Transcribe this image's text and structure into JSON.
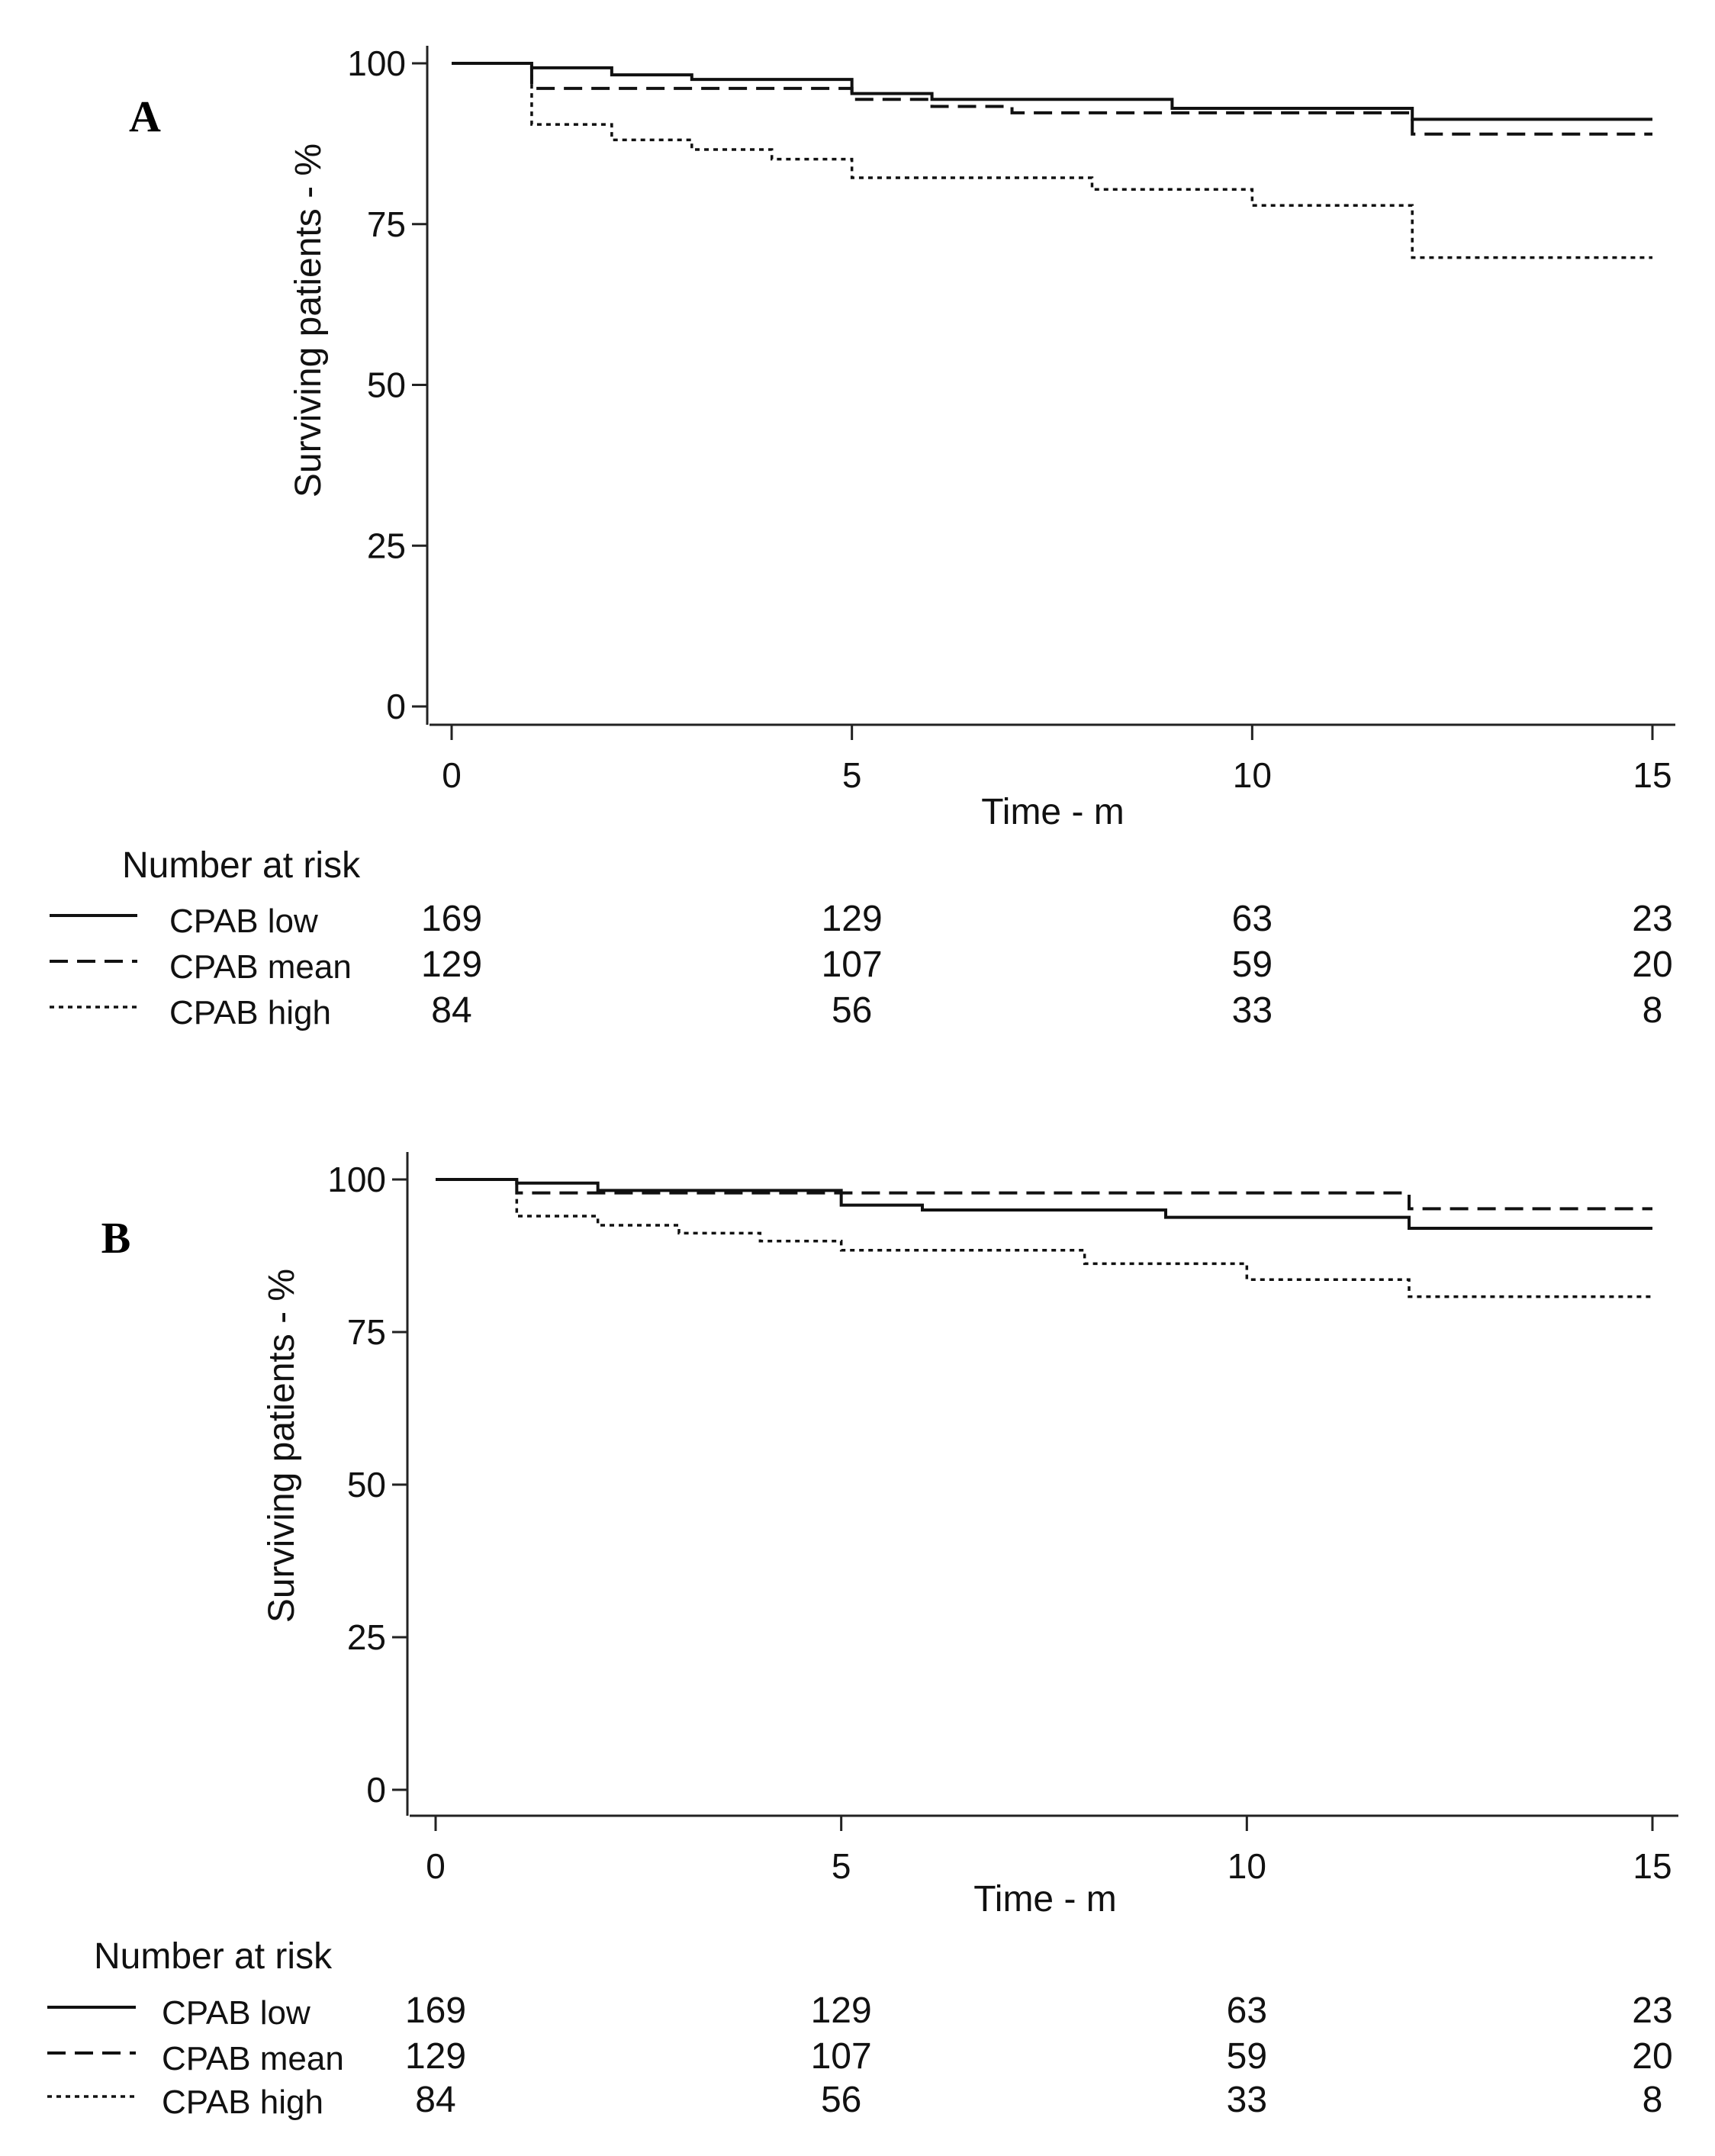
{
  "chart_data": [
    {
      "panel_label": "A",
      "type": "line",
      "subtype": "kaplan-meier-step",
      "title": "",
      "xlabel": "Time - m",
      "ylabel": "Surviving patients - %",
      "xlim": [
        0,
        15
      ],
      "ylim": [
        0,
        100
      ],
      "xticks": [
        0,
        5,
        10,
        15
      ],
      "yticks": [
        0,
        25,
        50,
        75,
        100
      ],
      "series": [
        {
          "name": "CPAB low",
          "style": "solid",
          "x": [
            0,
            1,
            2,
            3,
            5,
            6,
            9,
            12,
            15
          ],
          "y": [
            100,
            99.3,
            98.2,
            97.5,
            95.3,
            94.4,
            93.0,
            91.3,
            91.3
          ]
        },
        {
          "name": "CPAB mean",
          "style": "dashed",
          "x": [
            0,
            1,
            5,
            6,
            7,
            10,
            12,
            15
          ],
          "y": [
            100,
            96.1,
            94.4,
            93.3,
            92.3,
            92.3,
            89.0,
            89.0
          ]
        },
        {
          "name": "CPAB high",
          "style": "dotted",
          "x": [
            0,
            1,
            2,
            3,
            4,
            5,
            8,
            10,
            12,
            15
          ],
          "y": [
            100,
            90.5,
            88.1,
            86.6,
            85.1,
            82.2,
            80.4,
            77.9,
            69.8,
            69.8
          ]
        }
      ],
      "risk_table": {
        "heading": "Number at risk",
        "times": [
          0,
          5,
          10,
          15
        ],
        "rows": [
          {
            "name": "CPAB low",
            "style": "solid",
            "counts": [
              "169",
              "129",
              "63",
              "23"
            ]
          },
          {
            "name": "CPAB mean",
            "style": "dashed",
            "counts": [
              "129",
              "107",
              "59",
              "20"
            ]
          },
          {
            "name": "CPAB high",
            "style": "dotted",
            "counts": [
              "84",
              "56",
              "33",
              "8"
            ]
          }
        ]
      }
    },
    {
      "panel_label": "B",
      "type": "line",
      "subtype": "kaplan-meier-step",
      "title": "",
      "xlabel": "Time - m",
      "ylabel": "Surviving patients - %",
      "xlim": [
        0,
        15
      ],
      "ylim": [
        0,
        100
      ],
      "xticks": [
        0,
        5,
        10,
        15
      ],
      "yticks": [
        0,
        25,
        50,
        75,
        100
      ],
      "series": [
        {
          "name": "CPAB low",
          "style": "solid",
          "x": [
            0,
            1,
            2,
            5,
            6,
            9,
            12,
            15
          ],
          "y": [
            100,
            99.4,
            98.2,
            95.8,
            95.0,
            93.8,
            92.0,
            92.0
          ]
        },
        {
          "name": "CPAB mean",
          "style": "dashed",
          "x": [
            0,
            1,
            2,
            12,
            15
          ],
          "y": [
            100,
            97.8,
            97.8,
            95.2,
            95.2
          ]
        },
        {
          "name": "CPAB high",
          "style": "dotted",
          "x": [
            0,
            1,
            2,
            3,
            4,
            5,
            8,
            10,
            12,
            15
          ],
          "y": [
            100,
            94.0,
            92.5,
            91.2,
            89.9,
            88.4,
            86.2,
            83.6,
            80.8,
            80.8
          ]
        }
      ],
      "risk_table": {
        "heading": "Number at risk",
        "times": [
          0,
          5,
          10,
          15
        ],
        "rows": [
          {
            "name": "CPAB low",
            "style": "solid",
            "counts": [
              "169",
              "129",
              "63",
              "23"
            ]
          },
          {
            "name": "CPAB mean",
            "style": "dashed",
            "counts": [
              "129",
              "107",
              "59",
              "20"
            ]
          },
          {
            "name": "CPAB high",
            "style": "dotted",
            "counts": [
              "84",
              "56",
              "33",
              "8"
            ]
          }
        ]
      }
    }
  ]
}
